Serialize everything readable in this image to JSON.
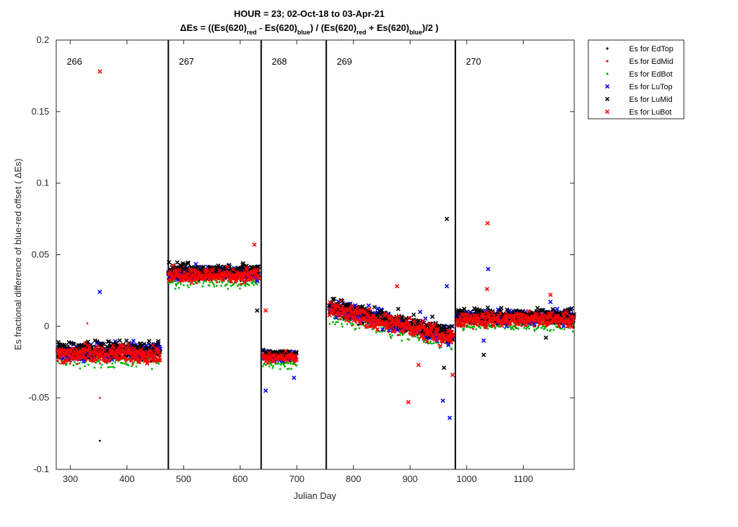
{
  "chart_data": {
    "type": "scatter",
    "title_line1": "HOUR = 23; 02-Oct-18 to 03-Apr-21",
    "title_line2": {
      "delta": "Δ",
      "parts": [
        {
          "t": "Es = ((Es(620)",
          "sub": false
        },
        {
          "t": "red",
          "sub": true
        },
        {
          "t": " - Es(620)",
          "sub": false
        },
        {
          "t": "blue",
          "sub": true
        },
        {
          "t": ") / (Es(620)",
          "sub": false
        },
        {
          "t": "red",
          "sub": true
        },
        {
          "t": " + Es(620)",
          "sub": false
        },
        {
          "t": "blue",
          "sub": true
        },
        {
          "t": ")/2  )",
          "sub": false
        }
      ]
    },
    "xlabel": "Julian Day",
    "ylabel": "Es fractional difference of blue-red offset (  ΔEs)",
    "xlim": [
      275,
      1190
    ],
    "ylim": [
      -0.1,
      0.2
    ],
    "xticks": [
      300,
      400,
      500,
      600,
      700,
      800,
      900,
      1000,
      1100
    ],
    "yticks": [
      -0.1,
      -0.05,
      0,
      0.05,
      0.1,
      0.15,
      0.2
    ],
    "ytick_labels": [
      "-0.1",
      "-0.05",
      "0",
      "0.05",
      "0.1",
      "0.15",
      "0.2"
    ],
    "grid": false,
    "legend_position": "outside-top-right",
    "deployments": [
      {
        "label": "266",
        "start": 275,
        "end": 473
      },
      {
        "label": "267",
        "start": 473,
        "end": 637
      },
      {
        "label": "268",
        "start": 637,
        "end": 752
      },
      {
        "label": "269",
        "start": 752,
        "end": 980
      },
      {
        "label": "270",
        "start": 980,
        "end": 1190
      }
    ],
    "deployment_boundaries": [
      473,
      637,
      752,
      980
    ],
    "series": [
      {
        "name": "Es for EdTop",
        "marker": "dot",
        "color": "#000000"
      },
      {
        "name": "Es for EdMid",
        "marker": "dot",
        "color": "#ff0000"
      },
      {
        "name": "Es for EdBot",
        "marker": "dot",
        "color": "#00b000"
      },
      {
        "name": "Es for LuTop",
        "marker": "x",
        "color": "#0000ff"
      },
      {
        "name": "Es for LuMid",
        "marker": "x",
        "color": "#000000"
      },
      {
        "name": "Es for LuBot",
        "marker": "x",
        "color": "#ff0000"
      }
    ],
    "segments": [
      {
        "x0": 277,
        "x1": 458,
        "y": -0.019,
        "spread": 0.005,
        "dx": 1
      },
      {
        "x0": 473,
        "x1": 632,
        "y": 0.036,
        "spread": 0.004,
        "dx": 1
      },
      {
        "x0": 640,
        "x1": 700,
        "y": -0.022,
        "spread": 0.003,
        "dx": 1.2
      },
      {
        "x0": 757,
        "x1": 975,
        "y": 0.0,
        "spread": 0.005,
        "dx": 1
      },
      {
        "x0": 982,
        "x1": 1190,
        "y": 0.005,
        "spread": 0.004,
        "dx": 1
      }
    ],
    "outliers": [
      {
        "series": 5,
        "x": 352,
        "y": 0.178
      },
      {
        "series": 3,
        "x": 352,
        "y": 0.024
      },
      {
        "series": 1,
        "x": 352,
        "y": -0.05
      },
      {
        "series": 0,
        "x": 352,
        "y": -0.08
      },
      {
        "series": 1,
        "x": 330,
        "y": 0.002
      },
      {
        "series": 3,
        "x": 645,
        "y": -0.045
      },
      {
        "series": 5,
        "x": 645,
        "y": 0.011
      },
      {
        "series": 3,
        "x": 695,
        "y": -0.036
      },
      {
        "series": 4,
        "x": 630,
        "y": 0.011
      },
      {
        "series": 5,
        "x": 625,
        "y": 0.057
      },
      {
        "series": 4,
        "x": 965,
        "y": 0.075
      },
      {
        "series": 3,
        "x": 965,
        "y": 0.028
      },
      {
        "series": 3,
        "x": 958,
        "y": -0.052
      },
      {
        "series": 3,
        "x": 970,
        "y": -0.064
      },
      {
        "series": 5,
        "x": 897,
        "y": -0.053
      },
      {
        "series": 5,
        "x": 915,
        "y": -0.027
      },
      {
        "series": 5,
        "x": 877,
        "y": 0.028
      },
      {
        "series": 3,
        "x": 918,
        "y": 0.01
      },
      {
        "series": 5,
        "x": 1037,
        "y": 0.072
      },
      {
        "series": 3,
        "x": 1038,
        "y": 0.04
      },
      {
        "series": 5,
        "x": 1036,
        "y": 0.026
      },
      {
        "series": 3,
        "x": 1030,
        "y": -0.01
      },
      {
        "series": 4,
        "x": 1030,
        "y": -0.02
      },
      {
        "series": 5,
        "x": 1148,
        "y": 0.022
      },
      {
        "series": 3,
        "x": 1148,
        "y": 0.017
      },
      {
        "series": 4,
        "x": 1140,
        "y": -0.008
      },
      {
        "series": 5,
        "x": 975,
        "y": -0.034
      },
      {
        "series": 4,
        "x": 960,
        "y": -0.029
      }
    ]
  }
}
